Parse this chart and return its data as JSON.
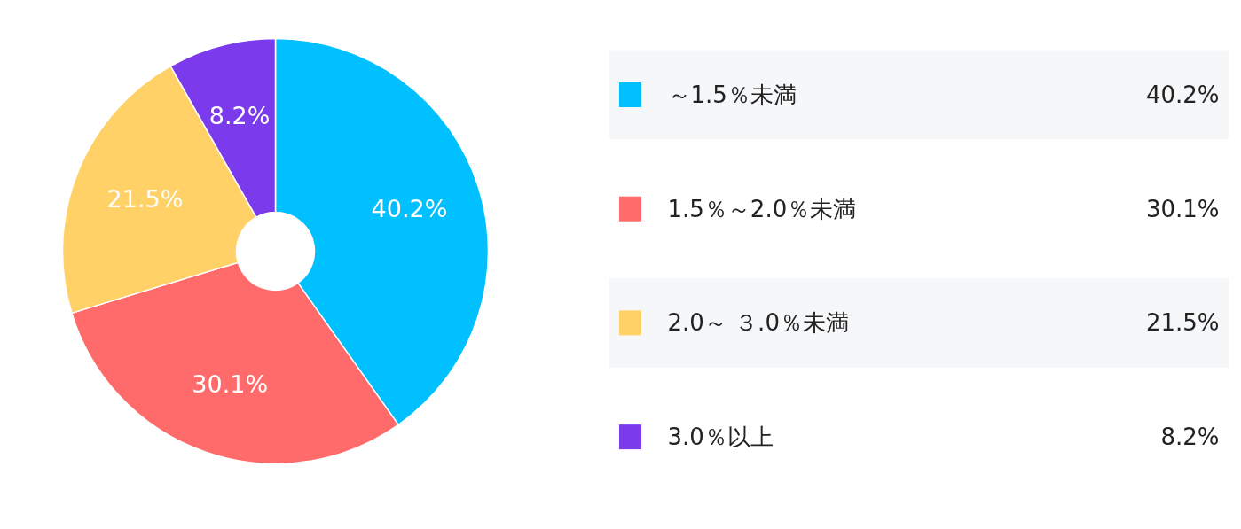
{
  "chart_data": {
    "type": "donut",
    "categories": [
      "～1.5％未満",
      "1.5％～2.0％未満",
      "2.0～ ３.0％未満",
      "3.0％以上"
    ],
    "values": [
      40.2,
      30.1,
      21.5,
      8.2
    ],
    "colors": [
      "#00c0ff",
      "#ff6b6b",
      "#ffd166",
      "#7c3aed"
    ],
    "value_labels": [
      "40.2%",
      "30.1%",
      "21.5%",
      "8.2%"
    ],
    "legend": "right"
  }
}
